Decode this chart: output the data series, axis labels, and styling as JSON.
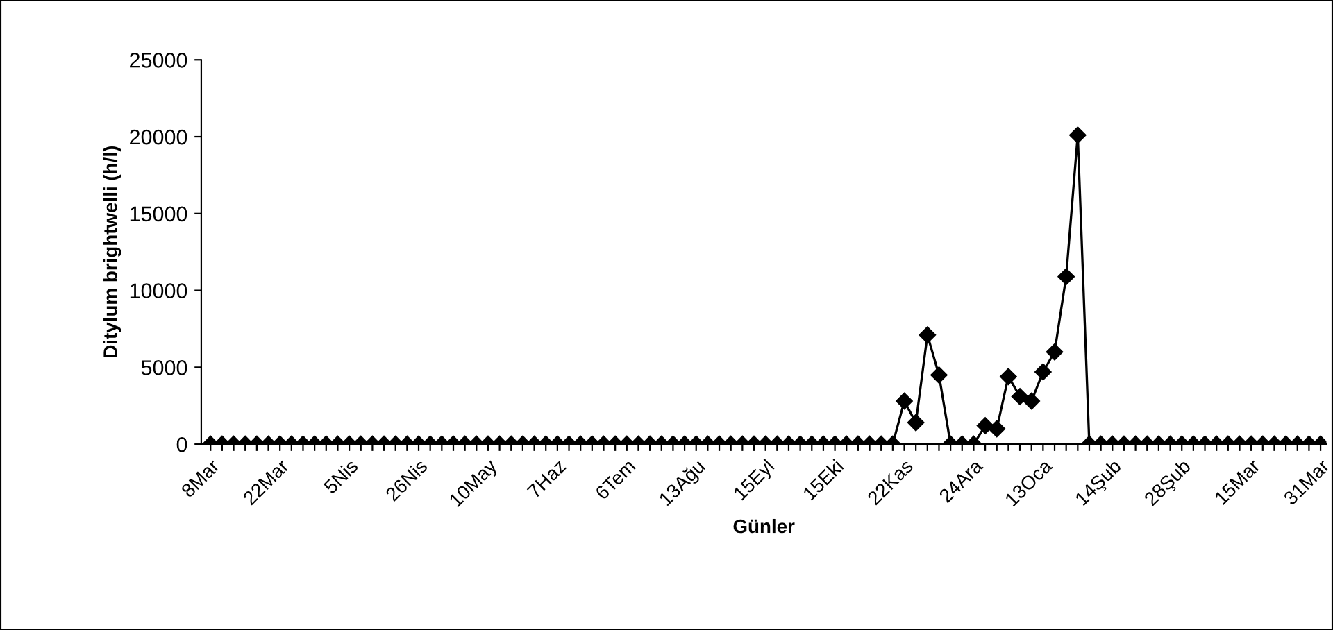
{
  "chart_data": {
    "type": "line",
    "xlabel": "Günler",
    "ylabel": "Ditylum brightwelli (h/l)",
    "categories": [
      "8Mar",
      null,
      null,
      null,
      null,
      null,
      "22Mar",
      null,
      null,
      null,
      null,
      null,
      "5Nis",
      null,
      null,
      null,
      null,
      null,
      "26Nis",
      null,
      null,
      null,
      null,
      null,
      "10May",
      null,
      null,
      null,
      null,
      null,
      "7Haz",
      null,
      null,
      null,
      null,
      null,
      "6Tem",
      null,
      null,
      null,
      null,
      null,
      "13Ağu",
      null,
      null,
      null,
      null,
      null,
      "15Eyl",
      null,
      null,
      null,
      null,
      null,
      "15Eki",
      null,
      null,
      null,
      null,
      null,
      "22Kas",
      null,
      null,
      null,
      null,
      null,
      "24Ara",
      null,
      null,
      null,
      null,
      null,
      "13Oca",
      null,
      null,
      null,
      null,
      null,
      "14Şub",
      null,
      null,
      null,
      null,
      null,
      "28Şub",
      null,
      null,
      null,
      null,
      null,
      "15Mar",
      null,
      null,
      null,
      null,
      null,
      "31Mar"
    ],
    "series": [
      {
        "color": "#000000",
        "values": [
          0,
          0,
          0,
          0,
          0,
          0,
          0,
          0,
          0,
          0,
          0,
          0,
          0,
          0,
          0,
          0,
          0,
          0,
          0,
          0,
          0,
          0,
          0,
          0,
          0,
          0,
          0,
          0,
          0,
          0,
          0,
          0,
          0,
          0,
          0,
          0,
          0,
          0,
          0,
          0,
          0,
          0,
          0,
          0,
          0,
          0,
          0,
          0,
          0,
          0,
          0,
          0,
          0,
          0,
          0,
          0,
          0,
          0,
          0,
          0,
          2800,
          1400,
          7100,
          4500,
          0,
          0,
          0,
          1200,
          1000,
          4400,
          3100,
          2800,
          4700,
          6000,
          10900,
          20100,
          0,
          0,
          0,
          0,
          0,
          0,
          0,
          0,
          0,
          0,
          0,
          0,
          0,
          0,
          0,
          0,
          0,
          0,
          0,
          0,
          0
        ]
      }
    ],
    "ylim": [
      0,
      25000
    ],
    "yticks": [
      0,
      5000,
      10000,
      15000,
      20000,
      25000
    ],
    "grid": false,
    "legend": false,
    "marker": "diamond",
    "line_style": "solid"
  }
}
